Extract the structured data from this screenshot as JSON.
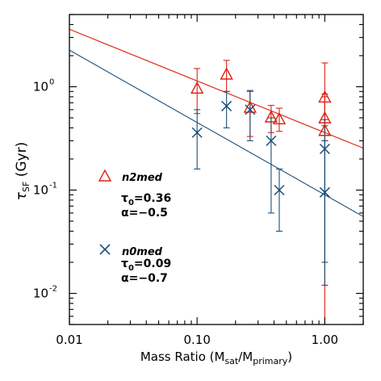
{
  "chart_data": {
    "type": "scatter",
    "x_scale": "log",
    "y_scale": "log",
    "xlim": [
      0.01,
      2.0
    ],
    "ylim": [
      0.005,
      5.0
    ],
    "xlabel_main": "Mass Ratio (M",
    "xlabel_sub1": "sat",
    "xlabel_mid": "/M",
    "xlabel_sub2": "primary",
    "xlabel_end": ")",
    "ylabel_main": "τ",
    "ylabel_sub": "SF",
    "ylabel_unit": " (Gyr)",
    "x_ticks": [
      {
        "value": 0.01,
        "label": "0.01"
      },
      {
        "value": 0.1,
        "label": "0.10"
      },
      {
        "value": 1.0,
        "label": "1.00"
      }
    ],
    "y_ticks": [
      {
        "value": 0.01,
        "base": "10",
        "exp": "-2"
      },
      {
        "value": 0.1,
        "base": "10",
        "exp": "-1"
      },
      {
        "value": 1,
        "base": "10",
        "exp": "0"
      }
    ],
    "series": [
      {
        "name": "n2med",
        "color": "#dd2211",
        "marker": "triangle",
        "tau0_label": "τ",
        "tau0_sub": "0",
        "tau0_value": "=0.36",
        "alpha_label": "α=−0.5",
        "fit": {
          "tau0": 0.36,
          "alpha": -0.5
        },
        "points": [
          {
            "x": 0.1,
            "y": 0.95,
            "ylo": 0.55,
            "yhi": 1.5
          },
          {
            "x": 0.17,
            "y": 1.3,
            "ylo": 0.9,
            "yhi": 1.8
          },
          {
            "x": 0.26,
            "y": 0.62,
            "ylo": 0.33,
            "yhi": 0.9
          },
          {
            "x": 0.38,
            "y": 0.5,
            "ylo": 0.36,
            "yhi": 0.66
          },
          {
            "x": 0.44,
            "y": 0.48,
            "ylo": 0.37,
            "yhi": 0.62
          },
          {
            "x": 1.0,
            "y": 0.78,
            "ylo": 0.42,
            "yhi": 1.7
          },
          {
            "x": 1.0,
            "y": 0.49,
            "ylo": 0.3,
            "yhi": 0.85
          },
          {
            "x": 1.0,
            "y": 0.37,
            "ylo": 0.005,
            "yhi": 0.8
          }
        ]
      },
      {
        "name": "n0med",
        "color": "#1a4e7a",
        "marker": "x",
        "tau0_label": "τ",
        "tau0_sub": "0",
        "tau0_value": "=0.09",
        "alpha_label": "α=−0.7",
        "fit": {
          "tau0": 0.09,
          "alpha": -0.7
        },
        "points": [
          {
            "x": 0.1,
            "y": 0.36,
            "ylo": 0.16,
            "yhi": 0.6
          },
          {
            "x": 0.17,
            "y": 0.65,
            "ylo": 0.4,
            "yhi": 0.9
          },
          {
            "x": 0.26,
            "y": 0.6,
            "ylo": 0.3,
            "yhi": 0.92
          },
          {
            "x": 0.38,
            "y": 0.3,
            "ylo": 0.06,
            "yhi": 0.5
          },
          {
            "x": 0.44,
            "y": 0.1,
            "ylo": 0.04,
            "yhi": 0.16
          },
          {
            "x": 1.0,
            "y": 0.25,
            "ylo": 0.012,
            "yhi": 0.48
          },
          {
            "x": 1.0,
            "y": 0.095,
            "ylo": 0.02,
            "yhi": 0.3
          }
        ]
      }
    ]
  }
}
